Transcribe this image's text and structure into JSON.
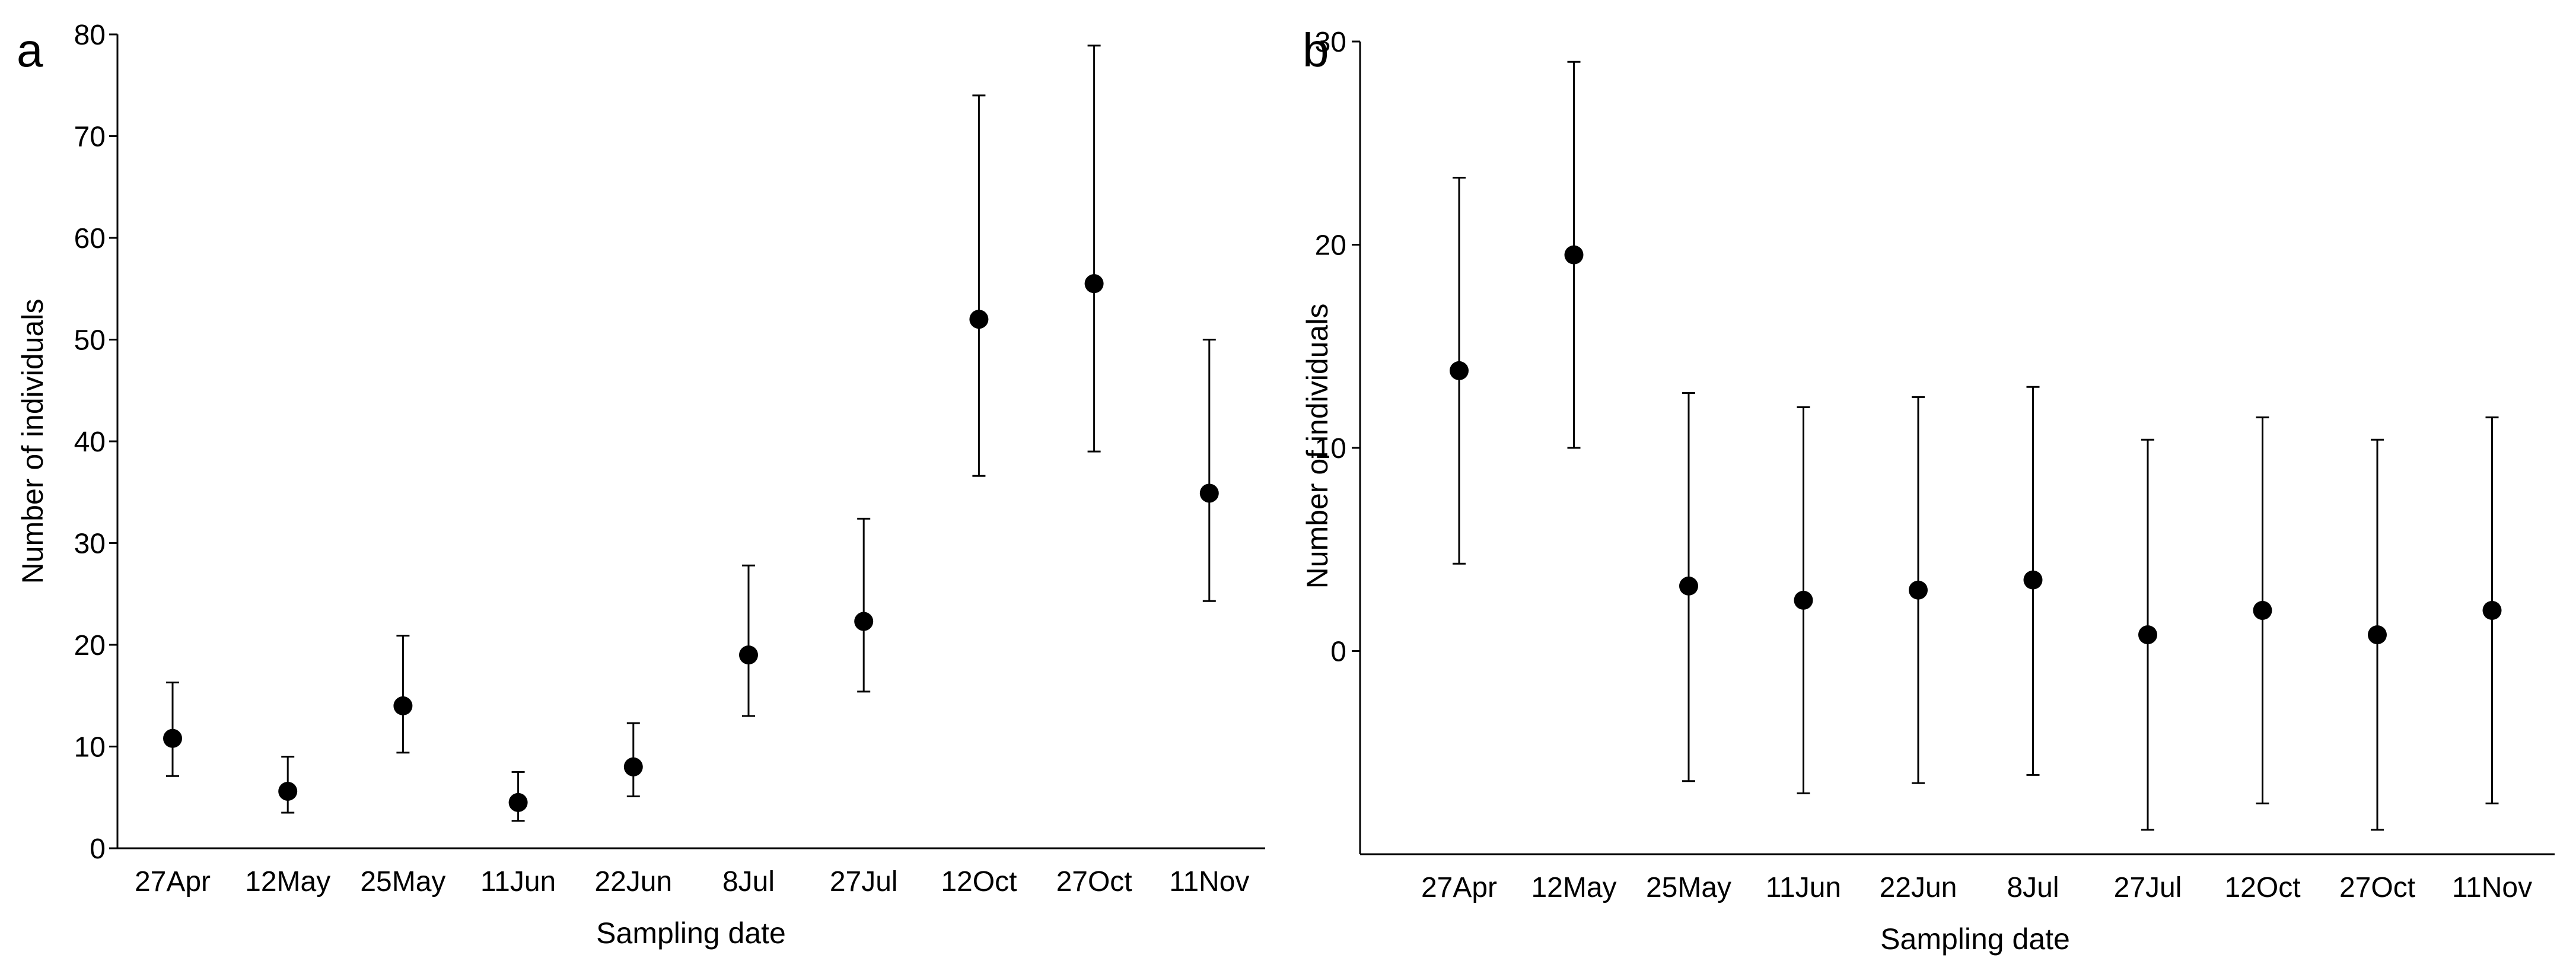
{
  "chart_data": [
    {
      "type": "scatter",
      "panel": "a",
      "xlabel": "Sampling date",
      "ylabel": "Number of individuals",
      "categories": [
        "27Apr",
        "12May",
        "25May",
        "11Jun",
        "22Jun",
        "8Jul",
        "27Jul",
        "12Oct",
        "27Oct",
        "11Nov"
      ],
      "values": [
        10.8,
        5.6,
        14.0,
        4.5,
        8.0,
        19.0,
        22.3,
        52.0,
        55.5,
        34.9
      ],
      "err_low": [
        7.1,
        3.5,
        9.4,
        2.7,
        5.1,
        13.0,
        15.4,
        36.6,
        39.0,
        24.3
      ],
      "err_high": [
        16.3,
        9.0,
        20.9,
        7.5,
        12.3,
        27.8,
        32.4,
        74.0,
        78.9,
        50.0
      ],
      "ylim": [
        0,
        80
      ],
      "yticks": [
        0,
        10,
        20,
        30,
        40,
        50,
        60,
        70,
        80
      ],
      "ytick_labels": [
        "0",
        "10",
        "20",
        "30",
        "40",
        "50",
        "60",
        "70",
        "80"
      ],
      "grid": false
    },
    {
      "type": "scatter",
      "panel": "b",
      "xlabel": "Sampling date",
      "ylabel": "Number of individuals",
      "categories": [
        "27Apr",
        "12May",
        "25May",
        "11Jun",
        "22Jun",
        "8Jul",
        "27Jul",
        "12Oct",
        "27Oct",
        "11Nov"
      ],
      "values": [
        13.8,
        19.5,
        3.2,
        2.5,
        3.0,
        3.5,
        0.8,
        2.0,
        0.8,
        2.0
      ],
      "err_low": [
        4.3,
        10.0,
        -6.4,
        -7.0,
        -6.5,
        -6.1,
        -8.8,
        -7.5,
        -8.8,
        -7.5
      ],
      "err_high": [
        23.3,
        29.0,
        12.7,
        12.0,
        12.5,
        13.0,
        10.4,
        11.5,
        10.4,
        11.5
      ],
      "ylim": [
        -10,
        30
      ],
      "yticks": [
        0,
        10,
        20,
        30
      ],
      "ytick_labels": [
        "0",
        "10",
        "20",
        "30"
      ],
      "grid": false
    }
  ]
}
